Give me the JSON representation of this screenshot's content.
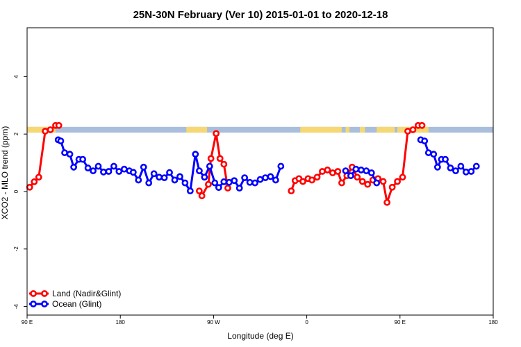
{
  "chart_data": {
    "type": "line",
    "title": "25N-30N February (Ver 10)   2015-01-01 to 2020-12-18",
    "xlabel": "Longitude (deg E)",
    "ylabel": "XCO2 - MLO trend (ppm)",
    "xlim": [
      90,
      450
    ],
    "ylim": [
      -4.3,
      5.7
    ],
    "x_ticks": [
      {
        "value": 90,
        "label": "90 E"
      },
      {
        "value": 162,
        "label": "180"
      },
      {
        "value": 234,
        "label": "90 W"
      },
      {
        "value": 306,
        "label": "0"
      },
      {
        "value": 378,
        "label": "90 E"
      },
      {
        "value": 450,
        "label": "180"
      }
    ],
    "y_ticks": [
      {
        "value": -4,
        "label": "-4"
      },
      {
        "value": -2,
        "label": "-2"
      },
      {
        "value": 0,
        "label": "0"
      },
      {
        "value": 2,
        "label": "2"
      },
      {
        "value": 4,
        "label": "4"
      }
    ],
    "grid": false,
    "legend_position": "bottom-left",
    "land_ocean_strip": {
      "y_range": [
        2.05,
        2.25
      ],
      "ocean_color": "#a8bedb",
      "land_color": "#f5d873",
      "land_longitudes": [
        [
          90,
          112
        ],
        [
          213,
          229
        ],
        [
          301,
          333
        ],
        [
          336,
          339
        ],
        [
          347,
          351
        ],
        [
          360,
          374
        ],
        [
          376,
          378
        ],
        [
          378,
          400
        ]
      ]
    },
    "series": [
      {
        "name": "Land (Nadir&Glint)",
        "color": "#ff0000",
        "segments": [
          [
            [
              92,
              0.15
            ],
            [
              95.5,
              0.34
            ],
            [
              99,
              0.5
            ],
            [
              104,
              2.1
            ],
            [
              108,
              2.15
            ],
            [
              112,
              2.3
            ],
            [
              114.5,
              2.3
            ]
          ],
          [
            [
              223,
              0.02
            ],
            [
              225,
              -0.15
            ],
            [
              230,
              0.25
            ],
            [
              232,
              1.15
            ],
            [
              236,
              2.02
            ],
            [
              239,
              1.15
            ],
            [
              242,
              0.95
            ],
            [
              245,
              0.12
            ]
          ],
          [
            [
              294,
              0.02
            ],
            [
              297,
              0.38
            ],
            [
              300,
              0.45
            ],
            [
              303,
              0.35
            ],
            [
              307,
              0.45
            ],
            [
              310,
              0.4
            ],
            [
              314,
              0.5
            ],
            [
              318,
              0.7
            ],
            [
              322,
              0.75
            ],
            [
              326,
              0.65
            ],
            [
              330,
              0.7
            ],
            [
              333,
              0.3
            ],
            [
              337,
              0.55
            ],
            [
              341,
              0.85
            ],
            [
              345,
              0.5
            ],
            [
              349,
              0.35
            ],
            [
              353,
              0.25
            ],
            [
              357,
              0.4
            ],
            [
              361,
              0.45
            ],
            [
              365,
              0.35
            ],
            [
              368,
              -0.38
            ],
            [
              372,
              0.15
            ],
            [
              376,
              0.35
            ],
            [
              380,
              0.5
            ],
            [
              384,
              2.1
            ],
            [
              388,
              2.15
            ],
            [
              392,
              2.3
            ],
            [
              395,
              2.3
            ]
          ]
        ]
      },
      {
        "name": "Ocean (Glint)",
        "color": "#0000ff",
        "segments": [
          [
            [
              114,
              1.8
            ],
            [
              116,
              1.76
            ],
            [
              119,
              1.35
            ],
            [
              123,
              1.3
            ],
            [
              126,
              0.85
            ],
            [
              130,
              1.12
            ],
            [
              133,
              1.12
            ],
            [
              137,
              0.82
            ],
            [
              141,
              0.72
            ],
            [
              145,
              0.88
            ],
            [
              149,
              0.68
            ],
            [
              153,
              0.7
            ],
            [
              157,
              0.88
            ],
            [
              161,
              0.7
            ],
            [
              165,
              0.78
            ],
            [
              169,
              0.72
            ],
            [
              172,
              0.67
            ],
            [
              176,
              0.4
            ],
            [
              180,
              0.85
            ],
            [
              184,
              0.3
            ],
            [
              188,
              0.62
            ],
            [
              192,
              0.5
            ],
            [
              196,
              0.48
            ],
            [
              200,
              0.66
            ],
            [
              204,
              0.4
            ],
            [
              208,
              0.52
            ],
            [
              212,
              0.3
            ],
            [
              216,
              0.02
            ],
            [
              220,
              1.3
            ],
            [
              223,
              0.72
            ],
            [
              227,
              0.5
            ],
            [
              231,
              0.88
            ],
            [
              235,
              0.3
            ],
            [
              238,
              0.14
            ],
            [
              242,
              0.34
            ],
            [
              246,
              0.32
            ],
            [
              250,
              0.38
            ],
            [
              254,
              0.12
            ],
            [
              258,
              0.48
            ],
            [
              262,
              0.32
            ],
            [
              266,
              0.3
            ],
            [
              270,
              0.42
            ],
            [
              274,
              0.48
            ],
            [
              278,
              0.52
            ],
            [
              282,
              0.4
            ],
            [
              286,
              0.88
            ]
          ],
          [
            [
              336,
              0.72
            ],
            [
              340,
              0.55
            ],
            [
              344,
              0.78
            ],
            [
              348,
              0.75
            ],
            [
              352,
              0.72
            ],
            [
              356,
              0.65
            ],
            [
              360,
              0.3
            ]
          ],
          [
            [
              394,
              1.8
            ],
            [
              397,
              1.76
            ],
            [
              400,
              1.35
            ],
            [
              404,
              1.3
            ],
            [
              407,
              0.85
            ],
            [
              410,
              1.12
            ],
            [
              413,
              1.12
            ],
            [
              417,
              0.82
            ],
            [
              421,
              0.72
            ],
            [
              425,
              0.88
            ],
            [
              429,
              0.68
            ],
            [
              433,
              0.7
            ],
            [
              437,
              0.88
            ]
          ]
        ]
      }
    ]
  }
}
